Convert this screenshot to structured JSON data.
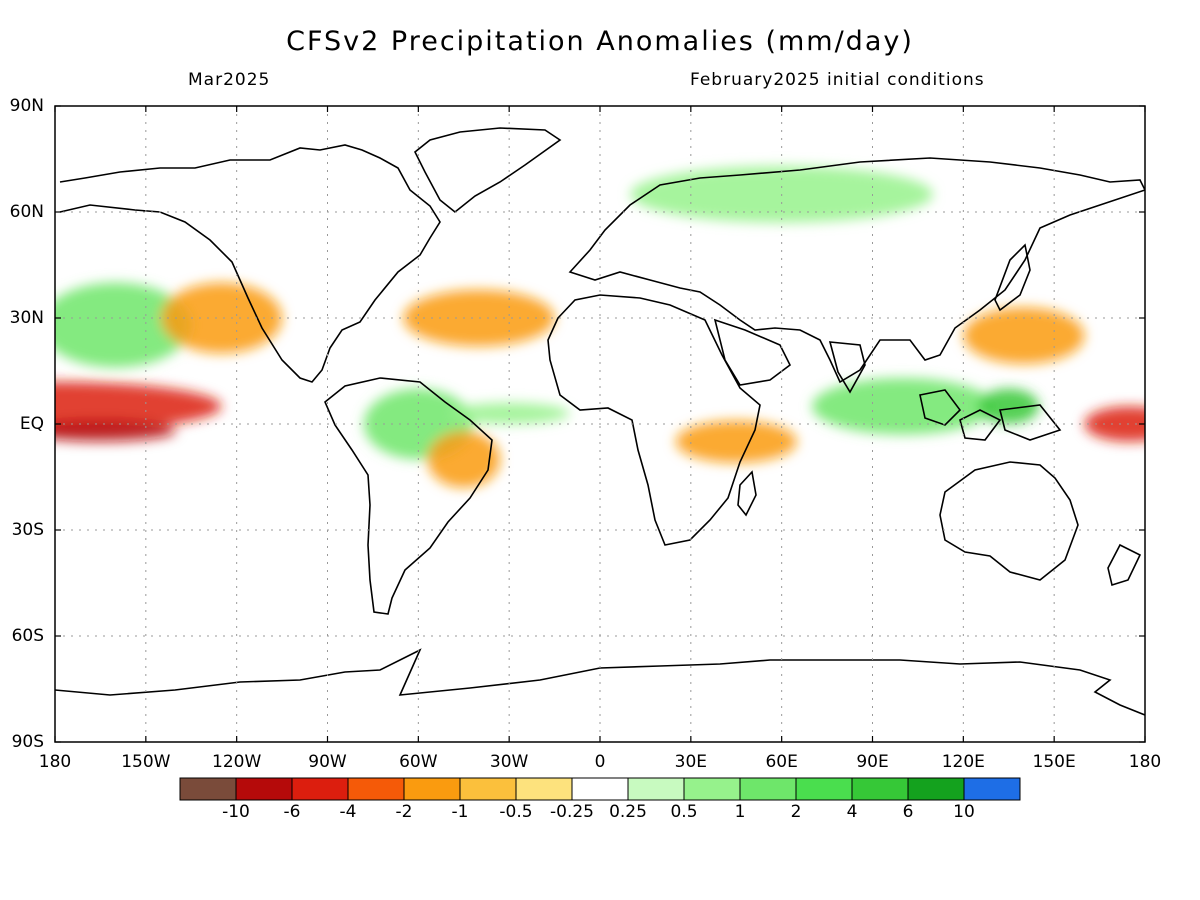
{
  "title": "CFSv2 Precipitation Anomalies (mm/day)",
  "subtitle_left": "Mar2025",
  "subtitle_right": "February2025 initial conditions",
  "lat_labels": [
    "90N",
    "60N",
    "30N",
    "EQ",
    "30S",
    "60S",
    "90S"
  ],
  "lon_labels": [
    "180",
    "150W",
    "120W",
    "90W",
    "60W",
    "30W",
    "0",
    "30E",
    "60E",
    "90E",
    "120E",
    "150E",
    "180"
  ],
  "colorbar": {
    "colors": [
      "#7a4b3a",
      "#b50a0a",
      "#dc1e0e",
      "#f55a08",
      "#fa9b0f",
      "#fbc03c",
      "#fde27d",
      "#ffffff",
      "#c8fac0",
      "#96f28c",
      "#6ee66a",
      "#4ade4e",
      "#36c837",
      "#14a21e",
      "#1e6ee6"
    ],
    "labels": [
      "-10",
      "-6",
      "-4",
      "-2",
      "-1",
      "-0.5",
      "-0.25",
      "0.25",
      "0.5",
      "1",
      "2",
      "4",
      "6",
      "10"
    ]
  },
  "anomaly_blobs": [
    {
      "lon": -180,
      "lat": 5,
      "rlon": 55,
      "rlat": 7,
      "value": -4
    },
    {
      "lon": -165,
      "lat": -2,
      "rlon": 25,
      "rlat": 3,
      "value": -6
    },
    {
      "lon": 175,
      "lat": 0,
      "rlon": 15,
      "rlat": 5,
      "value": -4
    },
    {
      "lon": -160,
      "lat": 28,
      "rlon": 25,
      "rlat": 12,
      "value": 2
    },
    {
      "lon": -125,
      "lat": 30,
      "rlon": 20,
      "rlat": 10,
      "value": -1
    },
    {
      "lon": -60,
      "lat": 0,
      "rlon": 18,
      "rlat": 10,
      "value": 2
    },
    {
      "lon": -45,
      "lat": -10,
      "rlon": 12,
      "rlat": 8,
      "value": -1
    },
    {
      "lon": -40,
      "lat": 30,
      "rlon": 25,
      "rlat": 8,
      "value": -1
    },
    {
      "lon": 100,
      "lat": 5,
      "rlon": 30,
      "rlat": 8,
      "value": 2
    },
    {
      "lon": 135,
      "lat": 5,
      "rlon": 10,
      "rlat": 5,
      "value": 6
    },
    {
      "lon": 140,
      "lat": 25,
      "rlon": 20,
      "rlat": 8,
      "value": -1
    },
    {
      "lon": 60,
      "lat": 65,
      "rlon": 50,
      "rlat": 8,
      "value": 1
    },
    {
      "lon": 45,
      "lat": -5,
      "rlon": 20,
      "rlat": 6,
      "value": -1
    },
    {
      "lon": -30,
      "lat": 3,
      "rlon": 20,
      "rlat": 3,
      "value": 1
    }
  ]
}
